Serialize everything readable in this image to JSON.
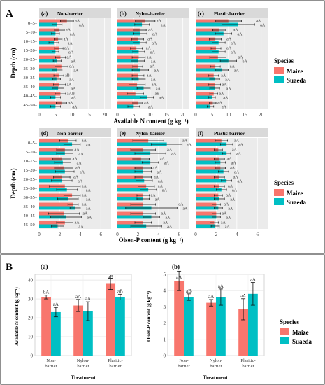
{
  "figure": {
    "label_A": "A",
    "label_B": "B",
    "legend_title": "Species",
    "legend_items": [
      {
        "name": "Maize",
        "color": "#F8766D"
      },
      {
        "name": "Suaeda",
        "color": "#00BFC4"
      }
    ]
  },
  "chart_data": [
    {
      "type": "bar",
      "orientation": "horizontal",
      "section": "A",
      "title": "Available N content (g kg⁻¹)",
      "ylabel": "Depth (cm)",
      "xlim": [
        0,
        22
      ],
      "xticks": [
        "0",
        "5",
        "10",
        "15",
        "20"
      ],
      "categories": [
        "0–5",
        "5–10",
        "10–15",
        "15–20",
        "20–25",
        "25–30",
        "30–35",
        "35–40",
        "40–45",
        "45–50"
      ],
      "panels": [
        {
          "label": "(a)",
          "title": "Non-barrier",
          "series": [
            {
              "name": "Maize",
              "values": [
                8.5,
                6.2,
                5.8,
                6.0,
                6.5,
                6.8,
                6.0,
                6.2,
                6.5,
                6.8
              ],
              "errors": [
                2.0,
                1.5,
                1.2,
                1.3,
                1.5,
                2.0,
                1.5,
                1.8,
                1.6,
                1.6
              ]
            },
            {
              "name": "Suaeda",
              "values": [
                5.5,
                5.0,
                4.5,
                5.0,
                5.5,
                5.5,
                5.3,
                5.8,
                5.0,
                5.0
              ],
              "errors": [
                1.5,
                1.2,
                1.5,
                1.0,
                1.2,
                1.5,
                1.2,
                1.8,
                1.5,
                1.5
              ]
            }
          ],
          "annotations": [
            [
              "aA",
              "aA"
            ],
            [
              "aA",
              "aA"
            ],
            [
              "aA",
              "aA"
            ],
            [
              "aA",
              "aA"
            ],
            [
              "aA",
              "aA"
            ],
            [
              "aA",
              "aA"
            ],
            [
              "aB",
              "aA"
            ],
            [
              "aA",
              "aA"
            ],
            [
              "aAB",
              "aA"
            ],
            [
              "aA",
              "aA"
            ]
          ]
        },
        {
          "label": "(b)",
          "title": "Nylon-barrier",
          "series": [
            {
              "name": "Maize",
              "values": [
                8.5,
                6.8,
                6.2,
                5.8,
                6.5,
                6.2,
                6.3,
                6.0,
                5.5,
                6.2
              ],
              "errors": [
                3.0,
                2.0,
                1.8,
                1.8,
                2.0,
                1.5,
                1.8,
                2.5,
                2.5,
                1.5
              ]
            },
            {
              "name": "Suaeda",
              "values": [
                7.5,
                7.0,
                6.8,
                6.5,
                6.2,
                7.0,
                6.5,
                8.0,
                9.0,
                5.0
              ],
              "errors": [
                2.2,
                2.0,
                2.0,
                1.8,
                2.0,
                2.5,
                2.0,
                2.0,
                2.0,
                1.8
              ]
            }
          ],
          "annotations": [
            [
              "aA",
              "aA"
            ],
            [
              "aA",
              "aA"
            ],
            [
              "aA",
              "aA"
            ],
            [
              "aA",
              "aA"
            ],
            [
              "aA",
              "aA"
            ],
            [
              "aA",
              "aA"
            ],
            [
              "aA",
              "aA"
            ],
            [
              "aA",
              "aA"
            ],
            [
              "aB",
              "aA"
            ],
            [
              "aA",
              "aA"
            ]
          ]
        },
        {
          "label": "(c)",
          "title": "Plastic-barrier",
          "series": [
            {
              "name": "Maize",
              "values": [
                10.0,
                7.2,
                6.0,
                6.2,
                6.8,
                6.0,
                5.5,
                5.8,
                5.5,
                5.2
              ],
              "errors": [
                4.0,
                2.0,
                1.8,
                1.5,
                2.5,
                1.5,
                1.5,
                1.8,
                1.2,
                1.0
              ]
            },
            {
              "name": "Suaeda",
              "values": [
                13.0,
                8.5,
                7.0,
                7.0,
                10.0,
                8.0,
                5.8,
                5.8,
                5.0,
                4.5
              ],
              "errors": [
                5.0,
                2.5,
                2.0,
                2.0,
                2.5,
                2.0,
                1.5,
                1.5,
                1.0,
                1.0
              ]
            }
          ],
          "annotations": [
            [
              "aA",
              "aA"
            ],
            [
              "aA",
              "aA"
            ],
            [
              "aA",
              "aA"
            ],
            [
              "aA",
              "aA"
            ],
            [
              "aA",
              "bA"
            ],
            [
              "aA",
              "aA"
            ],
            [
              "aA",
              "aA"
            ],
            [
              "aA",
              "aA"
            ],
            [
              "aA",
              "aA"
            ],
            [
              "aA",
              "aA"
            ]
          ]
        }
      ]
    },
    {
      "type": "bar",
      "orientation": "horizontal",
      "section": "A",
      "title": "Olsen-P content (g kg⁻¹)",
      "ylabel": "Depth (cm)",
      "xlim": [
        0,
        7
      ],
      "xticks": [
        "0",
        "2",
        "4",
        "6"
      ],
      "categories": [
        "0–5",
        "5–10",
        "10–15",
        "15–20",
        "20–25",
        "25–30",
        "30–35",
        "35–40",
        "40–45",
        "45–50"
      ],
      "panels": [
        {
          "label": "(d)",
          "title": "Non-barrier",
          "series": [
            {
              "name": "Maize",
              "values": [
                2.8,
                2.5,
                2.2,
                2.4,
                2.2,
                2.5,
                3.2,
                3.3,
                2.4,
                2.5
              ],
              "errors": [
                0.8,
                0.8,
                0.9,
                0.9,
                0.8,
                1.5,
                0.8,
                0.5,
                1.5,
                0.8
              ]
            },
            {
              "name": "Suaeda",
              "values": [
                3.2,
                2.5,
                2.3,
                2.5,
                2.2,
                2.7,
                2.8,
                3.5,
                2.6,
                1.8
              ],
              "errors": [
                0.8,
                0.8,
                0.8,
                0.9,
                1.0,
                1.0,
                1.0,
                0.5,
                1.5,
                0.6
              ]
            }
          ],
          "annotations": [
            [
              "aA",
              "aA"
            ],
            [
              "aA",
              "aA"
            ],
            [
              "aA",
              "aA"
            ],
            [
              "aA",
              "aA"
            ],
            [
              "aA",
              "aA"
            ],
            [
              "aA",
              "aA"
            ],
            [
              "aA",
              "aA"
            ],
            [
              "aA",
              "aA"
            ],
            [
              "aA",
              "aA"
            ],
            [
              "aA",
              "aA"
            ]
          ]
        },
        {
          "label": "(e)",
          "title": "Nylon-barrier",
          "series": [
            {
              "name": "Maize",
              "values": [
                3.0,
                2.5,
                2.3,
                2.5,
                2.5,
                2.8,
                2.5,
                2.5,
                2.5,
                2.5
              ],
              "errors": [
                1.5,
                1.2,
                0.8,
                0.8,
                0.8,
                0.8,
                0.6,
                1.2,
                1.2,
                0.8
              ]
            },
            {
              "name": "Suaeda",
              "values": [
                4.8,
                3.2,
                3.2,
                2.5,
                2.6,
                3.0,
                2.5,
                3.3,
                3.3,
                2.8
              ],
              "errors": [
                1.5,
                1.5,
                0.8,
                0.8,
                0.8,
                0.8,
                0.6,
                2.5,
                0.8,
                1.5
              ]
            }
          ],
          "annotations": [
            [
              "aA",
              "aA"
            ],
            [
              "aA",
              "aA"
            ],
            [
              "aA",
              "aA"
            ],
            [
              "aA",
              "aA"
            ],
            [
              "aA",
              "aA"
            ],
            [
              "aA",
              "aA"
            ],
            [
              "aA",
              "aA"
            ],
            [
              "aA",
              "aA"
            ],
            [
              "aA",
              "aA"
            ],
            [
              "aA",
              "aA"
            ]
          ]
        },
        {
          "label": "(f)",
          "title": "Plastic-barrier",
          "series": [
            {
              "name": "Maize",
              "values": [
                2.5,
                2.2,
                2.3,
                2.4,
                2.3,
                2.3,
                2.2,
                2.0,
                2.0,
                1.8
              ],
              "errors": [
                0.6,
                0.4,
                0.5,
                0.5,
                0.5,
                0.5,
                0.4,
                0.4,
                0.4,
                0.4
              ]
            },
            {
              "name": "Suaeda",
              "values": [
                3.0,
                3.0,
                2.4,
                2.7,
                3.0,
                2.5,
                2.3,
                2.2,
                2.0,
                1.9
              ],
              "errors": [
                0.6,
                0.4,
                0.5,
                0.5,
                0.5,
                0.5,
                0.5,
                0.4,
                0.4,
                0.4
              ]
            }
          ],
          "annotations": [
            [
              "aA",
              "aA"
            ],
            [
              "aA",
              "aA"
            ],
            [
              "aA",
              "aA"
            ],
            [
              "aA",
              "aA"
            ],
            [
              "aA",
              "aA"
            ],
            [
              "aA",
              "aA"
            ],
            [
              "aA",
              "aA"
            ],
            [
              "aA",
              "aA"
            ],
            [
              "aA",
              "aA"
            ],
            [
              "aA",
              "aA"
            ]
          ]
        }
      ]
    },
    {
      "type": "bar",
      "section": "B",
      "label": "(a)",
      "xlabel": "Treatment",
      "ylabel": "Available N content (g kg⁻¹)",
      "ylim": [
        0,
        43
      ],
      "yticks": [
        "0",
        "10",
        "20",
        "30",
        "40"
      ],
      "categories": [
        [
          "Non-",
          "barrier"
        ],
        [
          "Nylon-",
          "barrier"
        ],
        [
          "Plasitic-",
          "barrier"
        ]
      ],
      "series": [
        {
          "name": "Maize",
          "values": [
            31,
            26.5,
            38
          ],
          "errors": [
            1.0,
            3.2,
            3.0
          ]
        },
        {
          "name": "Suaeda",
          "values": [
            23,
            23.5,
            31
          ],
          "errors": [
            2.5,
            5.0,
            1.5
          ]
        }
      ],
      "annotations": [
        [
          "bA",
          "aA"
        ],
        [
          "aA",
          "aA"
        ],
        [
          "aB",
          "aB"
        ]
      ]
    },
    {
      "type": "bar",
      "section": "B",
      "label": "(b)",
      "xlabel": "Treatment",
      "ylabel": "Olsen-P content (g kg⁻¹)",
      "ylim": [
        0,
        5
      ],
      "yticks": [
        "0",
        "1",
        "2",
        "3",
        "4",
        "5"
      ],
      "categories": [
        [
          "Non-",
          "barrier"
        ],
        [
          "Nylon-",
          "barrier"
        ],
        [
          "Plasitic-",
          "barrier"
        ]
      ],
      "series": [
        {
          "name": "Maize",
          "values": [
            4.6,
            3.25,
            2.85
          ],
          "errors": [
            0.6,
            0.2,
            0.65
          ]
        },
        {
          "name": "Suaeda",
          "values": [
            3.6,
            3.6,
            3.8
          ],
          "errors": [
            0.2,
            0.5,
            0.7
          ]
        }
      ],
      "annotations": [
        [
          "aA",
          "aB"
        ],
        [
          "aA",
          "aA"
        ],
        [
          "aA",
          "aA"
        ]
      ]
    }
  ]
}
